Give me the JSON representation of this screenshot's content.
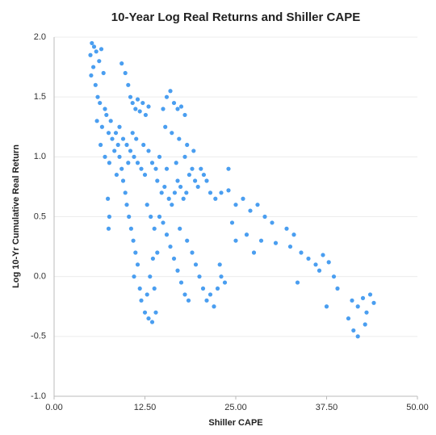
{
  "chart_data": {
    "type": "scatter",
    "title": "10-Year Log Real Returns and Shiller CAPE",
    "xlabel": "Shiller CAPE",
    "ylabel": "Log 10-Yr Cumulative Real Return",
    "xlim": [
      0,
      50
    ],
    "ylim": [
      -1,
      2
    ],
    "xticks": [
      {
        "value": 0,
        "label": "0.00"
      },
      {
        "value": 12.5,
        "label": "12.50"
      },
      {
        "value": 25,
        "label": "25.00"
      },
      {
        "value": 37.5,
        "label": "37.50"
      },
      {
        "value": 50,
        "label": "50.00"
      }
    ],
    "yticks": [
      {
        "value": 2,
        "label": "2.0"
      },
      {
        "value": 1.5,
        "label": "1.5"
      },
      {
        "value": 1,
        "label": "1.0"
      },
      {
        "value": 0.5,
        "label": "0.5"
      },
      {
        "value": 0,
        "label": "0.0"
      },
      {
        "value": -0.5,
        "label": "-0.5"
      },
      {
        "value": -1,
        "label": "-1.0"
      }
    ],
    "grid": true,
    "color": "#4a9ef0",
    "x": [
      5.2,
      5.5,
      5.0,
      5.8,
      6.2,
      6.5,
      5.4,
      6.8,
      5.1,
      5.7,
      6.0,
      6.3,
      5.9,
      6.6,
      7.0,
      7.2,
      7.5,
      6.4,
      7.8,
      8.0,
      8.3,
      7.0,
      7.6,
      8.5,
      8.8,
      9.0,
      9.3,
      8.6,
      9.5,
      7.4,
      7.6,
      7.5,
      9.8,
      10.0,
      10.3,
      10.6,
      10.9,
      11.2,
      11.5,
      11.0,
      11.8,
      12.0,
      12.5,
      13.0,
      13.5,
      12.8,
      13.2,
      13.8,
      14.0,
      9.3,
      9.8,
      10.2,
      10.5,
      10.8,
      11.2,
      11.5,
      11.8,
      12.2,
      12.6,
      13.0,
      9.0,
      9.5,
      10.0,
      10.5,
      11.0,
      11.5,
      12.0,
      12.5,
      10.2,
      10.8,
      11.3,
      12.3,
      13.0,
      13.5,
      14.0,
      14.5,
      15.0,
      15.5,
      16.0,
      16.5,
      17.0,
      17.5,
      18.0,
      15.3,
      16.2,
      17.2,
      18.3,
      14.2,
      14.8,
      15.2,
      15.8,
      16.2,
      16.6,
      17.0,
      17.4,
      17.8,
      18.2,
      18.6,
      19.0,
      19.4,
      19.8,
      20.2,
      20.6,
      21.0,
      15.5,
      16.8,
      18.0,
      19.2,
      14.5,
      15.0,
      15.5,
      16.0,
      16.5,
      17.0,
      17.5,
      18.0,
      18.5,
      17.3,
      18.3,
      19.0,
      19.5,
      20.0,
      20.5,
      21.0,
      21.5,
      22.0,
      22.5,
      23.0,
      23.5,
      22.8,
      12.8,
      13.3,
      13.8,
      14.2,
      13.6,
      21.5,
      22.2,
      23.0,
      24.0,
      25.0,
      26.0,
      27.0,
      28.0,
      29.0,
      30.0,
      24.5,
      26.5,
      28.5,
      30.5,
      32.0,
      33.0,
      32.5,
      34.0,
      35.0,
      36.0,
      36.5,
      37.0,
      37.8,
      38.5,
      33.5,
      39.0,
      37.5,
      41.0,
      41.8,
      42.5,
      43.0,
      43.5,
      44.0,
      41.2,
      41.8,
      42.8,
      40.5,
      25.0,
      27.5,
      24.0
    ],
    "values": [
      1.95,
      1.92,
      1.85,
      1.88,
      1.8,
      1.9,
      1.75,
      1.7,
      1.68,
      1.6,
      1.5,
      1.45,
      1.3,
      1.25,
      1.4,
      1.35,
      1.2,
      1.1,
      1.3,
      1.15,
      1.05,
      1.0,
      0.95,
      1.2,
      1.1,
      1.0,
      0.9,
      0.85,
      0.8,
      0.65,
      0.5,
      0.4,
      0.7,
      0.6,
      0.5,
      0.4,
      0.3,
      0.2,
      0.1,
      0.0,
      -0.1,
      -0.2,
      -0.3,
      -0.35,
      -0.38,
      -0.15,
      0.0,
      -0.1,
      -0.3,
      1.78,
      1.7,
      1.6,
      1.5,
      1.45,
      1.4,
      1.48,
      1.38,
      1.45,
      1.35,
      1.42,
      1.25,
      1.15,
      1.1,
      1.05,
      1.0,
      0.95,
      0.9,
      0.85,
      0.95,
      1.2,
      1.15,
      1.1,
      1.05,
      0.95,
      0.9,
      1.0,
      1.4,
      1.5,
      1.55,
      1.45,
      1.4,
      1.42,
      1.35,
      1.25,
      1.2,
      1.15,
      1.1,
      0.8,
      0.7,
      0.75,
      0.65,
      0.6,
      0.7,
      0.8,
      0.75,
      0.65,
      0.7,
      0.85,
      0.9,
      0.8,
      0.75,
      0.9,
      0.85,
      0.8,
      0.9,
      0.95,
      1.0,
      1.05,
      0.5,
      0.45,
      0.35,
      0.25,
      0.15,
      0.05,
      -0.05,
      -0.15,
      -0.2,
      0.4,
      0.3,
      0.2,
      0.1,
      0.0,
      -0.1,
      -0.2,
      -0.15,
      -0.25,
      -0.1,
      0.0,
      -0.05,
      0.1,
      0.6,
      0.5,
      0.4,
      0.2,
      0.15,
      0.7,
      0.65,
      0.7,
      0.72,
      0.6,
      0.65,
      0.55,
      0.6,
      0.5,
      0.45,
      0.45,
      0.35,
      0.3,
      0.28,
      0.4,
      0.35,
      0.25,
      0.2,
      0.15,
      0.1,
      0.05,
      0.18,
      0.12,
      0.0,
      -0.05,
      -0.1,
      -0.25,
      -0.2,
      -0.25,
      -0.18,
      -0.3,
      -0.15,
      -0.22,
      -0.45,
      -0.5,
      -0.4,
      -0.35,
      0.3,
      0.2,
      0.9
    ]
  }
}
